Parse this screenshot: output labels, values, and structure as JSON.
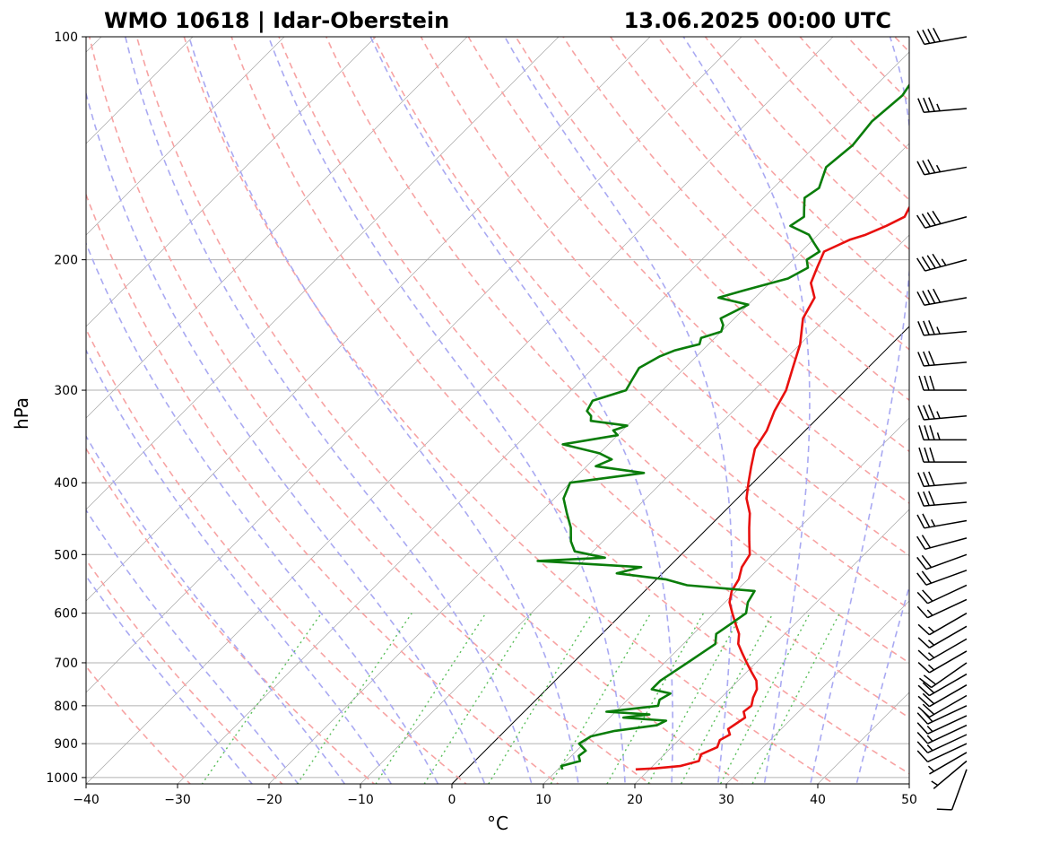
{
  "header": {
    "station": "WMO 10618 | Idar-Oberstein",
    "datetime": "13.06.2025 00:00 UTC"
  },
  "chart_data": {
    "type": "line",
    "subtype": "skew-T log-p",
    "xlabel": "°C",
    "ylabel": "hPa",
    "xlim": [
      -40,
      50
    ],
    "ylim": [
      1020,
      100
    ],
    "y_scale": "log",
    "x_ticks": [
      -40,
      -30,
      -20,
      -10,
      0,
      10,
      20,
      30,
      40,
      50
    ],
    "x_tick_labels": [
      "−40",
      "−30",
      "−20",
      "−10",
      "0",
      "10",
      "20",
      "30",
      "40",
      "50"
    ],
    "y_ticks": [
      1000,
      900,
      800,
      700,
      600,
      500,
      400,
      300,
      200,
      100
    ],
    "y_tick_labels": [
      "1000",
      "900",
      "800",
      "700",
      "600",
      "500",
      "400",
      "300",
      "200",
      "100"
    ],
    "grid": "horizontal isobars",
    "colors": {
      "temperature": "#e8100e",
      "dewpoint": "#0a7d0a",
      "dry_adiabat": "#f7a3a3",
      "moist_adiabat": "#a9a9f2",
      "mixing_ratio": "#5bbf5b",
      "isotherm": "#a6a6a6",
      "zero_isotherm": "#000000",
      "isobar": "#b0b0b0"
    },
    "series": [
      {
        "role": "temperature",
        "p": [
          975,
          972,
          965,
          950,
          930,
          910,
          890,
          875,
          860,
          845,
          830,
          815,
          800,
          780,
          760,
          740,
          720,
          700,
          680,
          660,
          640,
          620,
          600,
          580,
          560,
          540,
          520,
          500,
          480,
          460,
          440,
          420,
          400,
          380,
          360,
          340,
          320,
          300,
          280,
          260,
          240,
          225,
          215,
          205,
          195,
          188,
          185,
          180,
          175,
          170,
          165,
          160,
          155,
          150,
          145,
          140,
          135,
          130,
          125,
          120,
          115,
          110,
          105,
          100
        ],
        "t": [
          18.5,
          20.5,
          23.0,
          24.5,
          24.0,
          25.0,
          24.5,
          25.0,
          24.2,
          24.5,
          24.8,
          24.0,
          24.2,
          23.5,
          23.0,
          22.0,
          20.5,
          19.0,
          17.5,
          16.0,
          15.0,
          13.5,
          12.0,
          10.5,
          9.5,
          9.0,
          8.0,
          7.5,
          6.0,
          4.5,
          3.0,
          1.0,
          -0.5,
          -2.0,
          -3.5,
          -4.2,
          -5.5,
          -6.5,
          -8.2,
          -10.0,
          -12.5,
          -13.5,
          -15.5,
          -16.5,
          -17.5,
          -16.0,
          -14.8,
          -13.5,
          -12.5,
          -13.0,
          -11.0,
          -9.5,
          -9.2,
          -7.5,
          -6.0,
          -5.0,
          -5.5,
          -6.0,
          -5.0,
          -5.5,
          -6.5,
          -7.0,
          -7.2,
          -8.0
        ]
      },
      {
        "role": "dewpoint",
        "p": [
          975,
          965,
          950,
          935,
          920,
          900,
          880,
          865,
          850,
          838,
          830,
          822,
          815,
          800,
          785,
          770,
          760,
          740,
          720,
          700,
          680,
          660,
          640,
          620,
          600,
          580,
          560,
          550,
          540,
          530,
          520,
          510,
          505,
          495,
          480,
          460,
          440,
          420,
          400,
          388,
          380,
          372,
          365,
          355,
          345,
          340,
          335,
          330,
          325,
          320,
          310,
          300,
          290,
          280,
          270,
          265,
          260,
          255,
          250,
          245,
          240,
          230,
          225,
          220,
          212,
          205,
          200,
          195,
          190,
          185,
          180,
          175,
          170,
          165,
          160,
          150,
          140,
          130,
          120,
          110,
          100
        ],
        "t": [
          10.5,
          10.0,
          11.5,
          10.8,
          11.0,
          9.5,
          10.0,
          12.0,
          16.0,
          16.5,
          11.5,
          14.0,
          9.0,
          14.0,
          13.5,
          14.0,
          11.5,
          11.5,
          12.0,
          12.5,
          13.0,
          13.5,
          12.5,
          13.0,
          13.5,
          12.5,
          12.0,
          4.0,
          1.0,
          -5.0,
          -3.0,
          -15.0,
          -8.0,
          -12.0,
          -13.5,
          -15.0,
          -17.0,
          -19.0,
          -20.0,
          -13.0,
          -19.0,
          -18.0,
          -20.0,
          -25.0,
          -20.0,
          -21.0,
          -20.0,
          -24.5,
          -25.0,
          -26.0,
          -26.5,
          -24.0,
          -24.5,
          -25.0,
          -24.0,
          -23.0,
          -21.0,
          -21.5,
          -20.0,
          -20.5,
          -21.5,
          -20.0,
          -24.0,
          -22.0,
          -18.5,
          -17.5,
          -18.5,
          -18.0,
          -19.5,
          -21.0,
          -24.0,
          -23.5,
          -24.5,
          -25.5,
          -25.0,
          -26.5,
          -26.0,
          -26.5,
          -26.0,
          -27.0,
          -27.5
        ]
      }
    ],
    "wind_barbs": {
      "p": [
        975,
        950,
        925,
        900,
        875,
        850,
        825,
        800,
        775,
        750,
        725,
        700,
        675,
        650,
        625,
        600,
        575,
        550,
        525,
        500,
        475,
        450,
        425,
        400,
        375,
        350,
        325,
        300,
        275,
        250,
        225,
        200,
        175,
        150,
        125,
        100
      ],
      "speed_kt": [
        10,
        5,
        5,
        10,
        15,
        15,
        15,
        20,
        20,
        20,
        20,
        20,
        15,
        15,
        15,
        15,
        15,
        20,
        20,
        20,
        20,
        25,
        30,
        30,
        30,
        35,
        35,
        30,
        30,
        35,
        40,
        45,
        40,
        35,
        35,
        40
      ],
      "dir_deg": [
        200,
        230,
        240,
        245,
        245,
        245,
        245,
        245,
        240,
        240,
        240,
        235,
        240,
        240,
        240,
        240,
        245,
        245,
        250,
        250,
        255,
        260,
        265,
        265,
        270,
        270,
        265,
        270,
        265,
        265,
        260,
        255,
        255,
        260,
        265,
        260
      ]
    }
  }
}
